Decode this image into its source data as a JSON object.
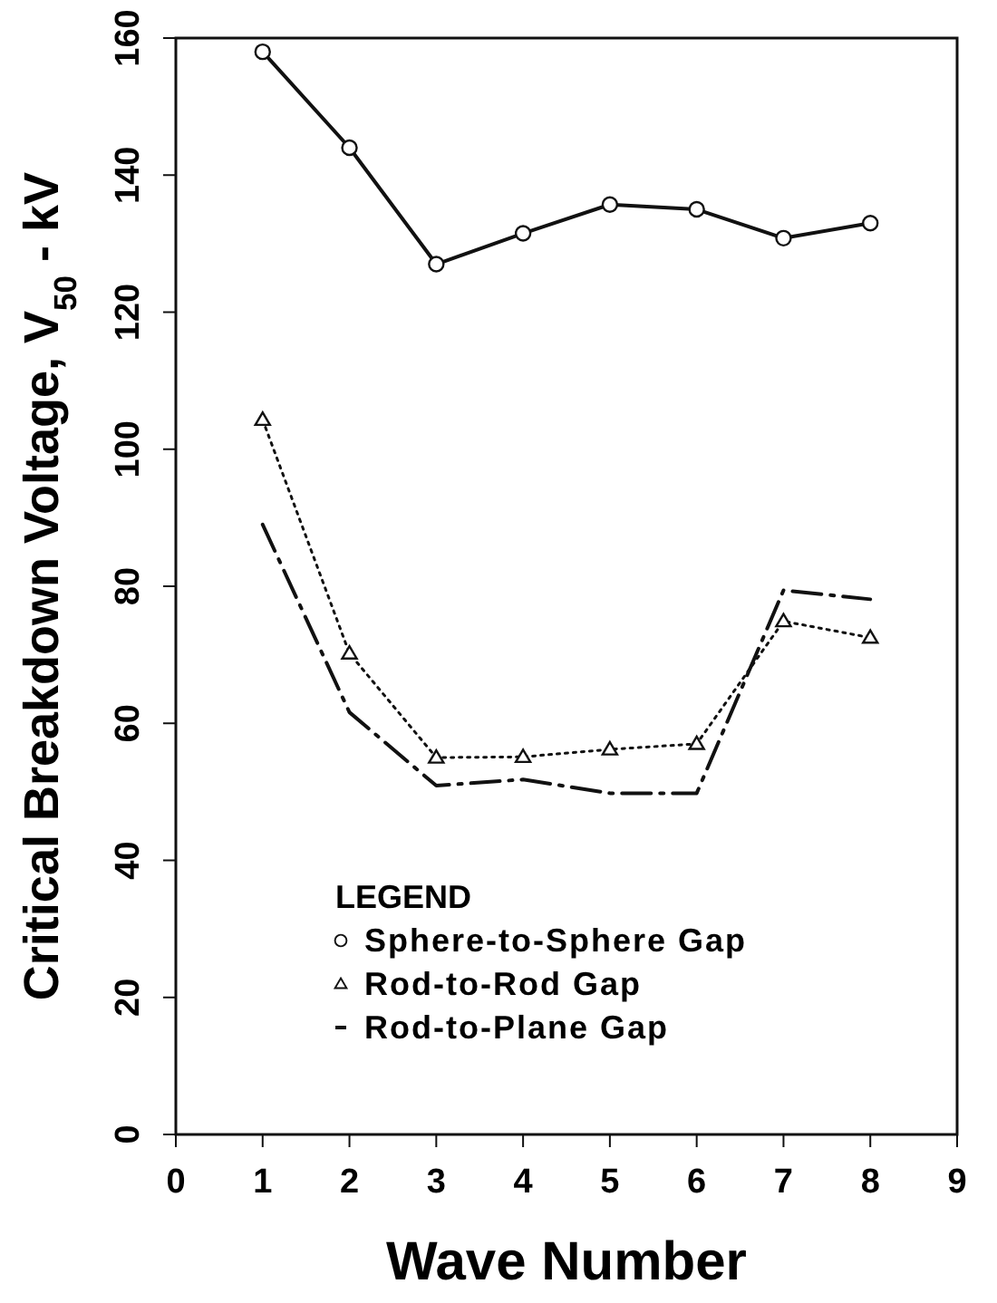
{
  "chart_data": {
    "type": "line",
    "xlabel": "Wave Number",
    "ylabel": "Critical Breakdown Voltage, V$_{50}$ - kV",
    "legend_title": "LEGEND",
    "x": [
      1,
      2,
      3,
      4,
      5,
      6,
      7,
      8
    ],
    "series": [
      {
        "name": "Sphere-to-Sphere Gap",
        "color": "#111111",
        "marker": "circle",
        "line_style": "solid",
        "values": [
          158,
          144,
          127,
          131.5,
          135.7,
          135,
          130.8,
          133
        ]
      },
      {
        "name": "Rod-to-Rod Gap",
        "color": "#111111",
        "marker": "triangle",
        "line_style": "dotted",
        "values": [
          104.3,
          70.2,
          55,
          55.1,
          56.2,
          57,
          74.9,
          72.5
        ]
      },
      {
        "name": "Rod-to-Plane Gap",
        "color": "#111111",
        "marker": "none",
        "line_style": "dashed",
        "values": [
          89,
          61.6,
          50.9,
          51.8,
          49.8,
          49.8,
          79.4,
          78.1
        ]
      }
    ],
    "xlim": [
      0,
      9
    ],
    "xticks": [
      0,
      1,
      2,
      3,
      4,
      5,
      6,
      7,
      8,
      9
    ],
    "ylim": [
      0,
      160
    ],
    "yticks": [
      0,
      20,
      40,
      60,
      80,
      100,
      120,
      140,
      160
    ],
    "grid": false,
    "legend": "bottom left"
  }
}
